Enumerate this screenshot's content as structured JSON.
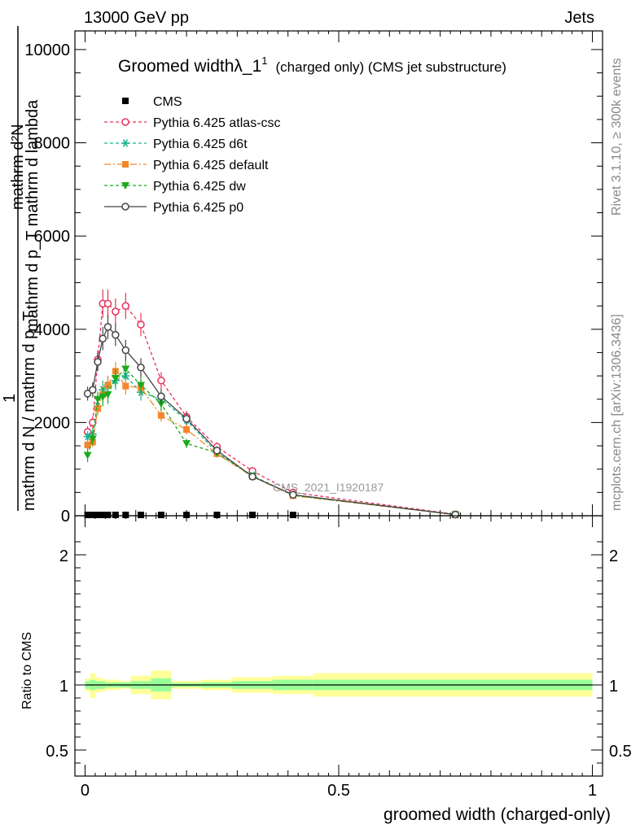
{
  "header": {
    "left": "13000 GeV pp",
    "right": "Jets"
  },
  "side_labels": {
    "rivet": "Rivet 3.1.10, ≥ 300k events",
    "mcplots": "mcplots.cern.ch [arXiv:1306.3436]"
  },
  "colors": {
    "cms": "#000000",
    "atlas_csc": "#e8305a",
    "d6t": "#1ab394",
    "default": "#f5862a",
    "dw": "#1aaa1a",
    "p0": "#444444",
    "band_outer": "#ffff99",
    "band_inner": "#99ff99",
    "watermark": "#999999"
  },
  "chart_data": [
    {
      "type": "line",
      "title_main": "Groomed widthλ_1",
      "title_sup": "1",
      "title_rest": "(charged only) (CMS jet substructure)",
      "ylabel_top": "mathrm d²N",
      "ylabel_top_rest": "mathrm d p_T mathrm d lambda",
      "ylabel_sub": "T",
      "ylabel_frac_num": "1",
      "ylabel_frac_den": "mathrm d N / mathrm d p_T",
      "ylabel_sub2": "T",
      "watermark": "CMS_2021_I1920187",
      "xlim": [
        -0.02,
        1.02
      ],
      "ylim": [
        0,
        10400
      ],
      "yticks": [
        0,
        2000,
        4000,
        6000,
        8000,
        10000
      ],
      "ytick_labels": [
        "0",
        "2000",
        "4000",
        "6000",
        "8000",
        "10000"
      ],
      "legend_position": "top-left",
      "series": [
        {
          "name": "CMS",
          "key": "cms",
          "style": "square",
          "x": [
            0.005,
            0.015,
            0.025,
            0.035,
            0.045,
            0.06,
            0.08,
            0.11,
            0.15,
            0.2,
            0.26,
            0.33,
            0.41,
            0.73
          ],
          "y": [
            0,
            0,
            0,
            0,
            0,
            0,
            0,
            0,
            0,
            0,
            0,
            0,
            0,
            0
          ]
        },
        {
          "name": "Pythia 6.425 atlas-csc",
          "key": "atlas_csc",
          "style": "open-circle-dashed",
          "x": [
            0.005,
            0.015,
            0.025,
            0.035,
            0.045,
            0.06,
            0.08,
            0.11,
            0.15,
            0.2,
            0.26,
            0.33,
            0.41,
            0.73
          ],
          "y": [
            1800,
            2000,
            3350,
            4550,
            4550,
            4380,
            4500,
            4100,
            2900,
            2120,
            1480,
            960,
            500,
            30
          ],
          "err": [
            120,
            130,
            200,
            300,
            300,
            280,
            280,
            250,
            180,
            130,
            90,
            70,
            40,
            10
          ]
        },
        {
          "name": "Pythia 6.425 d6t",
          "key": "d6t",
          "style": "star-dashed",
          "x": [
            0.005,
            0.015,
            0.025,
            0.035,
            0.045,
            0.06,
            0.08,
            0.11,
            0.15,
            0.2,
            0.26,
            0.33,
            0.41,
            0.73
          ],
          "y": [
            1700,
            1750,
            2350,
            2700,
            2800,
            2900,
            3000,
            2650,
            2500,
            2050,
            1350,
            860,
            440,
            25
          ],
          "err": [
            110,
            120,
            160,
            200,
            200,
            200,
            200,
            180,
            150,
            120,
            80,
            60,
            40,
            10
          ]
        },
        {
          "name": "Pythia 6.425 default",
          "key": "default",
          "style": "square-dashdot",
          "x": [
            0.005,
            0.015,
            0.025,
            0.035,
            0.045,
            0.06,
            0.08,
            0.11,
            0.15,
            0.2,
            0.26,
            0.33,
            0.41,
            0.73
          ],
          "y": [
            1520,
            1580,
            2300,
            2600,
            2800,
            3100,
            2780,
            2750,
            2150,
            1850,
            1330,
            840,
            430,
            25
          ],
          "err": [
            100,
            110,
            150,
            180,
            190,
            200,
            180,
            170,
            130,
            110,
            80,
            60,
            40,
            10
          ]
        },
        {
          "name": "Pythia 6.425 dw",
          "key": "dw",
          "style": "triangle-down-dashed",
          "x": [
            0.005,
            0.015,
            0.025,
            0.035,
            0.045,
            0.06,
            0.08,
            0.11,
            0.15,
            0.2,
            0.26,
            0.33,
            0.41,
            0.73
          ],
          "y": [
            1300,
            1650,
            2500,
            2550,
            2600,
            2950,
            3150,
            2800,
            2400,
            1550,
            1350,
            850,
            440,
            25
          ],
          "err": [
            150,
            130,
            160,
            200,
            200,
            200,
            200,
            180,
            150,
            100,
            80,
            60,
            40,
            10
          ]
        },
        {
          "name": "Pythia 6.425 p0",
          "key": "p0",
          "style": "open-circle-solid",
          "x": [
            0.005,
            0.015,
            0.025,
            0.035,
            0.045,
            0.06,
            0.08,
            0.11,
            0.15,
            0.2,
            0.26,
            0.33,
            0.41,
            0.73
          ],
          "y": [
            2620,
            2700,
            3300,
            3800,
            4050,
            3880,
            3550,
            3180,
            2560,
            2080,
            1400,
            840,
            450,
            25
          ],
          "err": [
            150,
            160,
            200,
            250,
            260,
            240,
            220,
            200,
            160,
            130,
            90,
            60,
            40,
            10
          ]
        }
      ]
    },
    {
      "type": "area",
      "ylabel": "Ratio to CMS",
      "xlabel": "groomed width (charged-only)",
      "xlim": [
        -0.02,
        1.02
      ],
      "ylim": [
        0.3,
        2.3
      ],
      "xticks": [
        0,
        0.5,
        1
      ],
      "xtick_labels": [
        "0",
        "0.5",
        "1"
      ],
      "yticks": [
        0.5,
        1,
        2
      ],
      "ytick_labels": [
        "0.5",
        "1",
        "2"
      ],
      "reference_line": 1,
      "bands": {
        "bins": [
          [
            0.0,
            0.01
          ],
          [
            0.01,
            0.02
          ],
          [
            0.02,
            0.03
          ],
          [
            0.03,
            0.04
          ],
          [
            0.04,
            0.05
          ],
          [
            0.05,
            0.07
          ],
          [
            0.07,
            0.09
          ],
          [
            0.09,
            0.13
          ],
          [
            0.13,
            0.17
          ],
          [
            0.17,
            0.23
          ],
          [
            0.23,
            0.29
          ],
          [
            0.29,
            0.37
          ],
          [
            0.37,
            0.45
          ],
          [
            0.45,
            1.0
          ]
        ],
        "outer": [
          [
            0.95,
            1.05
          ],
          [
            0.9,
            1.09
          ],
          [
            0.94,
            1.06
          ],
          [
            0.95,
            1.05
          ],
          [
            0.96,
            1.04
          ],
          [
            0.96,
            1.04
          ],
          [
            0.97,
            1.03
          ],
          [
            0.93,
            1.07
          ],
          [
            0.89,
            1.11
          ],
          [
            0.97,
            1.03
          ],
          [
            0.96,
            1.04
          ],
          [
            0.94,
            1.06
          ],
          [
            0.93,
            1.07
          ],
          [
            0.91,
            1.09
          ]
        ],
        "inner": [
          [
            0.97,
            1.03
          ],
          [
            0.96,
            1.04
          ],
          [
            0.97,
            1.03
          ],
          [
            0.97,
            1.03
          ],
          [
            0.98,
            1.02
          ],
          [
            0.98,
            1.02
          ],
          [
            0.98,
            1.02
          ],
          [
            0.97,
            1.03
          ],
          [
            0.95,
            1.05
          ],
          [
            0.985,
            1.015
          ],
          [
            0.98,
            1.02
          ],
          [
            0.97,
            1.03
          ],
          [
            0.96,
            1.04
          ],
          [
            0.96,
            1.04
          ]
        ]
      }
    }
  ]
}
